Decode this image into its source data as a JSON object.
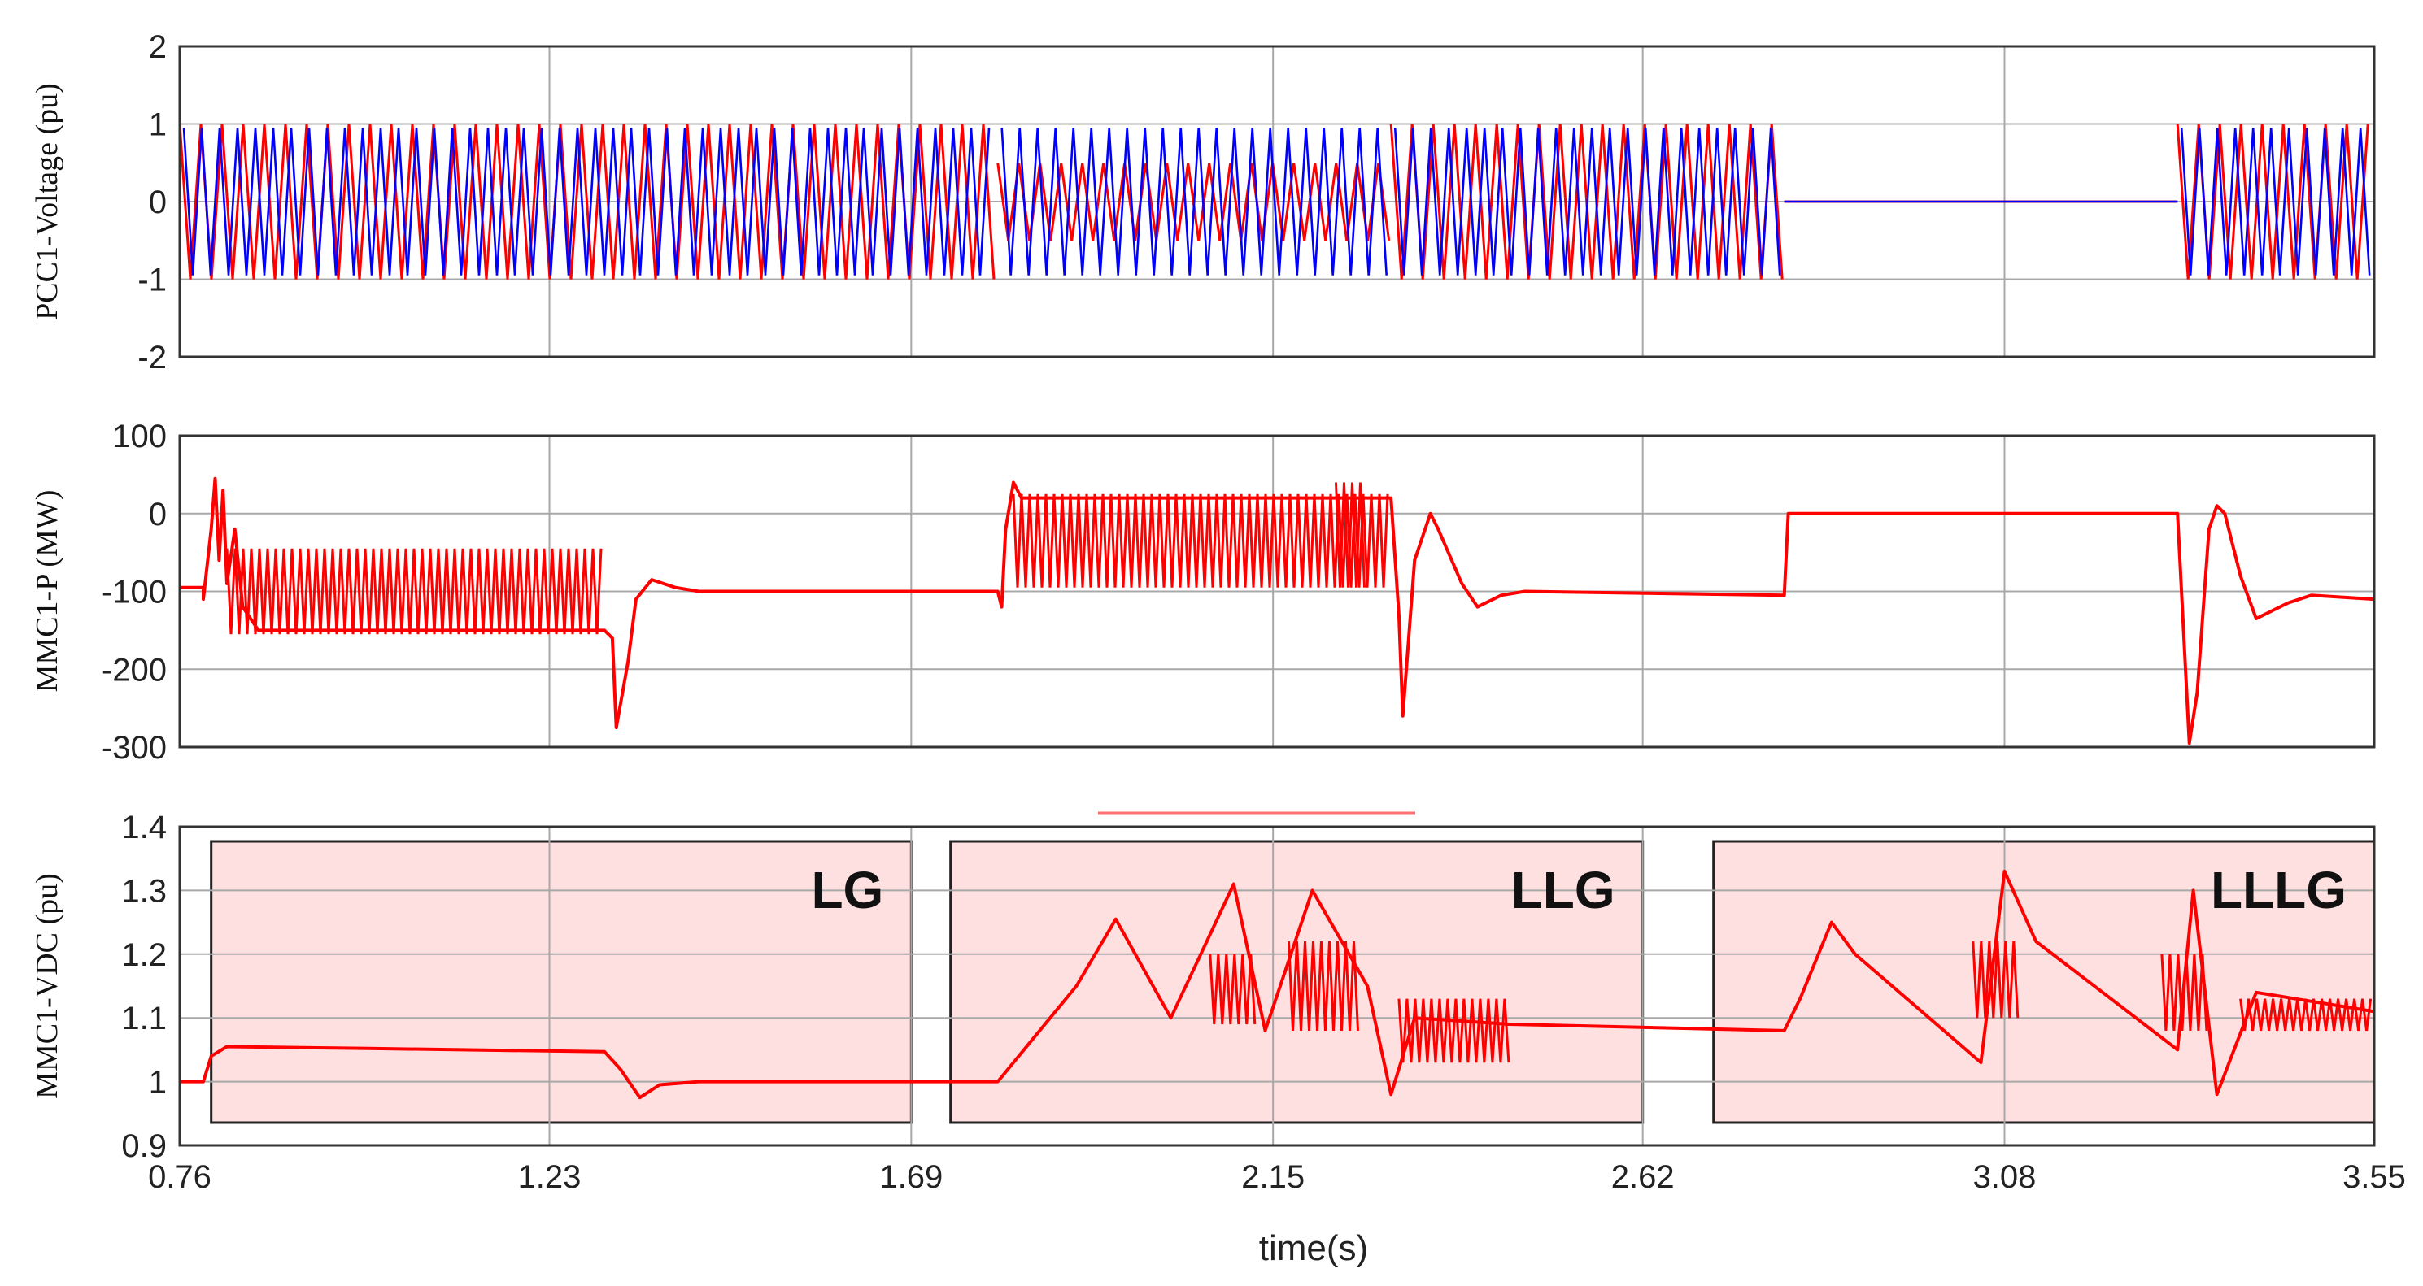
{
  "chart_data": [
    {
      "type": "line",
      "ylabel": "PCC1-Voltage (pu)",
      "xlim": [
        0.76,
        3.55
      ],
      "ylim": [
        -2,
        2
      ],
      "yticks": [
        2,
        1,
        0,
        -1,
        -2
      ],
      "grid": true,
      "series": [
        {
          "color": "#ff0000",
          "style": "oscillation",
          "segments": [
            {
              "x0": 0.76,
              "x1": 1.8,
              "amplitude": 1.0
            },
            {
              "x0": 1.8,
              "x1": 2.3,
              "amplitude": 0.5
            },
            {
              "x0": 2.3,
              "x1": 2.8,
              "amplitude": 1.0
            },
            {
              "x0": 2.8,
              "x1": 3.3,
              "amplitude": 0.0
            },
            {
              "x0": 3.3,
              "x1": 3.55,
              "amplitude": 1.0
            }
          ]
        },
        {
          "color": "#0000ff",
          "style": "oscillation",
          "segments": [
            {
              "x0": 0.76,
              "x1": 1.8,
              "amplitude": 0.95
            },
            {
              "x0": 1.8,
              "x1": 2.3,
              "amplitude": 0.95
            },
            {
              "x0": 2.3,
              "x1": 2.8,
              "amplitude": 0.95
            },
            {
              "x0": 2.8,
              "x1": 3.3,
              "amplitude": 0.0
            },
            {
              "x0": 3.3,
              "x1": 3.55,
              "amplitude": 0.95
            }
          ]
        }
      ]
    },
    {
      "type": "line",
      "ylabel": "MMC1-P (MW)",
      "xlim": [
        0.76,
        3.55
      ],
      "ylim": [
        -300,
        100
      ],
      "yticks": [
        100,
        0,
        -100,
        -200,
        -300
      ],
      "grid": true,
      "series": [
        {
          "color": "#ff0000",
          "points": [
            [
              0.76,
              -95
            ],
            [
              0.79,
              -95
            ],
            [
              0.79,
              -110
            ],
            [
              0.8,
              -20
            ],
            [
              0.805,
              45
            ],
            [
              0.81,
              -60
            ],
            [
              0.815,
              30
            ],
            [
              0.82,
              -90
            ],
            [
              0.83,
              -20
            ],
            [
              0.84,
              -120
            ],
            [
              0.86,
              -150
            ],
            [
              1.3,
              -150
            ],
            [
              1.31,
              -160
            ],
            [
              1.315,
              -275
            ],
            [
              1.33,
              -190
            ],
            [
              1.34,
              -110
            ],
            [
              1.36,
              -85
            ],
            [
              1.39,
              -95
            ],
            [
              1.42,
              -100
            ],
            [
              1.8,
              -100
            ],
            [
              1.805,
              -120
            ],
            [
              1.81,
              -20
            ],
            [
              1.82,
              40
            ],
            [
              1.83,
              20
            ],
            [
              2.3,
              20
            ],
            [
              2.31,
              -130
            ],
            [
              2.315,
              -260
            ],
            [
              2.33,
              -60
            ],
            [
              2.35,
              0
            ],
            [
              2.36,
              -20
            ],
            [
              2.39,
              -90
            ],
            [
              2.41,
              -120
            ],
            [
              2.44,
              -105
            ],
            [
              2.47,
              -100
            ],
            [
              2.8,
              -105
            ],
            [
              2.805,
              0
            ],
            [
              3.3,
              0
            ],
            [
              3.305,
              -100
            ],
            [
              3.315,
              -295
            ],
            [
              3.325,
              -230
            ],
            [
              3.34,
              -20
            ],
            [
              3.35,
              10
            ],
            [
              3.36,
              0
            ],
            [
              3.38,
              -80
            ],
            [
              3.4,
              -135
            ],
            [
              3.44,
              -115
            ],
            [
              3.47,
              -105
            ],
            [
              3.55,
              -110
            ]
          ],
          "oscillation_bands": [
            {
              "x0": 0.82,
              "x1": 1.3,
              "low": -155,
              "high": -45
            },
            {
              "x0": 1.82,
              "x1": 2.3,
              "low": -95,
              "high": 25
            },
            {
              "x0": 2.23,
              "x1": 2.27,
              "low": -95,
              "high": 40
            }
          ]
        }
      ]
    },
    {
      "type": "line",
      "ylabel": "MMC1-VDC (pu)",
      "xlabel": "time(s)",
      "xlim": [
        0.76,
        3.55
      ],
      "ylim": [
        0.9,
        1.4
      ],
      "yticks": [
        1.4,
        1.3,
        1.2,
        1.1,
        1,
        0.9
      ],
      "xticks": [
        0.76,
        1.23,
        1.69,
        2.15,
        2.62,
        3.08,
        3.55
      ],
      "grid": true,
      "regions": [
        {
          "label": "LG",
          "x0": 0.8,
          "x1": 1.69
        },
        {
          "label": "LLG",
          "x0": 1.74,
          "x1": 2.62
        },
        {
          "label": "LLLG",
          "x0": 2.71,
          "x1": 3.55
        }
      ],
      "series": [
        {
          "color": "#ff0000",
          "points": [
            [
              0.76,
              1.0
            ],
            [
              0.79,
              1.0
            ],
            [
              0.8,
              1.04
            ],
            [
              0.82,
              1.055
            ],
            [
              1.0,
              1.052
            ],
            [
              1.3,
              1.047
            ],
            [
              1.32,
              1.02
            ],
            [
              1.345,
              0.975
            ],
            [
              1.37,
              0.995
            ],
            [
              1.42,
              1.0
            ],
            [
              1.8,
              1.0
            ],
            [
              1.82,
              1.03
            ],
            [
              1.9,
              1.15
            ],
            [
              1.95,
              1.255
            ],
            [
              2.02,
              1.1
            ],
            [
              2.1,
              1.31
            ],
            [
              2.14,
              1.08
            ],
            [
              2.2,
              1.3
            ],
            [
              2.27,
              1.15
            ],
            [
              2.3,
              0.98
            ],
            [
              2.33,
              1.1
            ],
            [
              2.45,
              1.09
            ],
            [
              2.8,
              1.08
            ],
            [
              2.82,
              1.13
            ],
            [
              2.86,
              1.25
            ],
            [
              2.89,
              1.2
            ],
            [
              3.05,
              1.03
            ],
            [
              3.08,
              1.33
            ],
            [
              3.12,
              1.22
            ],
            [
              3.3,
              1.05
            ],
            [
              3.32,
              1.3
            ],
            [
              3.35,
              0.98
            ],
            [
              3.4,
              1.14
            ],
            [
              3.45,
              1.13
            ],
            [
              3.55,
              1.11
            ]
          ],
          "oscillation_bands": [
            {
              "x0": 2.07,
              "x1": 2.13,
              "low": 1.09,
              "high": 1.2
            },
            {
              "x0": 2.17,
              "x1": 2.26,
              "low": 1.08,
              "high": 1.22
            },
            {
              "x0": 2.31,
              "x1": 2.45,
              "low": 1.03,
              "high": 1.13
            },
            {
              "x0": 3.04,
              "x1": 3.1,
              "low": 1.1,
              "high": 1.22
            },
            {
              "x0": 3.28,
              "x1": 3.34,
              "low": 1.08,
              "high": 1.2
            },
            {
              "x0": 3.38,
              "x1": 3.55,
              "low": 1.08,
              "high": 1.13
            }
          ]
        }
      ]
    }
  ]
}
